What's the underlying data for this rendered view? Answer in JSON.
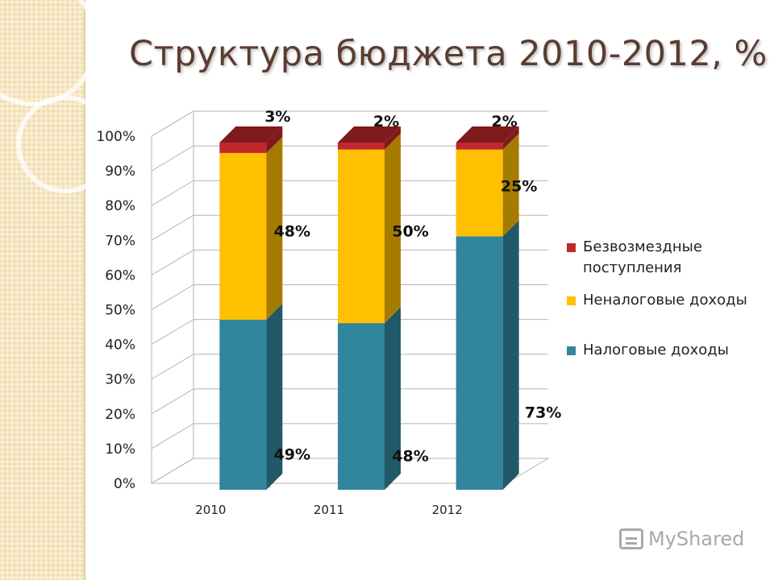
{
  "slide": {
    "title": "Структура бюджета 2010-2012, %"
  },
  "watermark": {
    "text": "MyShared",
    "icon": "myshared-logo-icon"
  },
  "legend": {
    "items": [
      {
        "label": "Безвозмездные поступления",
        "color": "#c0282d"
      },
      {
        "label": "Неналоговые доходы",
        "color": "#ffc000"
      },
      {
        "label": "Налоговые доходы",
        "color": "#31859c"
      }
    ]
  },
  "chart_data": {
    "type": "bar",
    "stacked": true,
    "three_d": true,
    "categories": [
      "2010",
      "2011",
      "2012"
    ],
    "series": [
      {
        "name": "Налоговые доходы",
        "values": [
          49,
          48,
          73
        ],
        "labels": [
          "49%",
          "48%",
          "73%"
        ],
        "color": "#31859c",
        "side_color": "#215968"
      },
      {
        "name": "Неналоговые доходы",
        "values": [
          48,
          50,
          25
        ],
        "labels": [
          "48%",
          "50%",
          "25%"
        ],
        "color": "#ffc000",
        "side_color": "#a67c00"
      },
      {
        "name": "Безвозмездные поступления",
        "values": [
          3,
          2,
          2
        ],
        "labels": [
          "3%",
          "2%",
          "2%"
        ],
        "color": "#c0282d",
        "side_color": "#7f1a1d"
      }
    ],
    "ylim": [
      0,
      100
    ],
    "yticks": [
      "0%",
      "10%",
      "20%",
      "30%",
      "40%",
      "50%",
      "60%",
      "70%",
      "80%",
      "90%",
      "100%"
    ],
    "grid": true,
    "legend_position": "right"
  }
}
